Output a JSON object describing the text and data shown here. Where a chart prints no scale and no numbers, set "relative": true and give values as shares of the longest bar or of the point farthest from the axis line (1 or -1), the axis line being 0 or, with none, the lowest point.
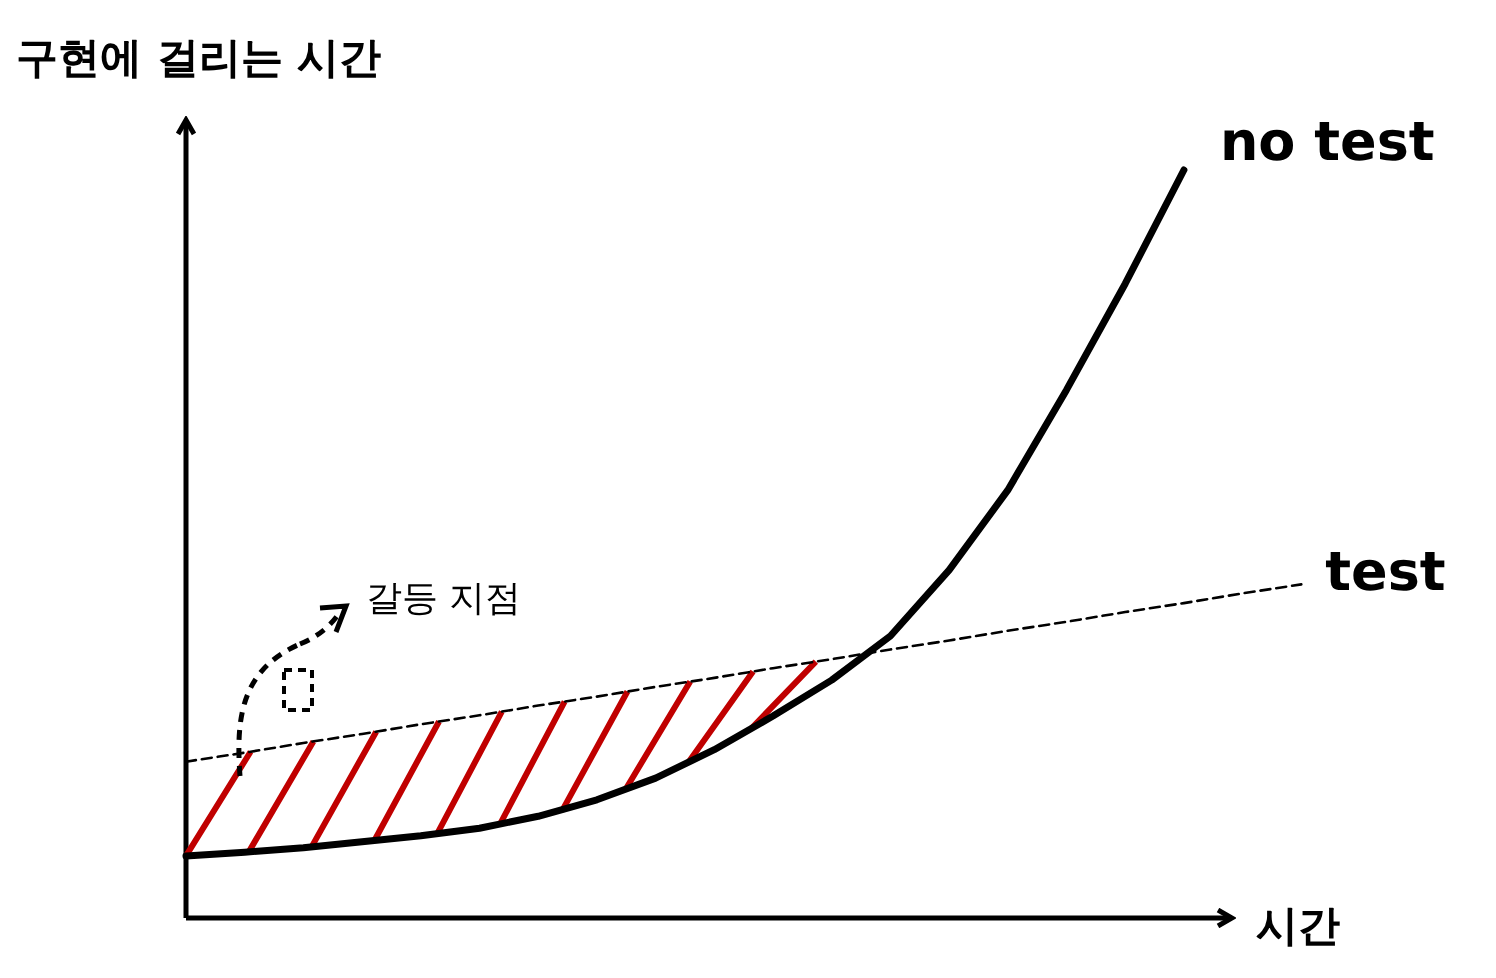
{
  "chart_data": {
    "type": "line",
    "relative": true,
    "xlabel": "시간",
    "ylabel": "구현에 걸리는 시간",
    "categories": [
      null,
      null,
      null,
      null,
      null,
      null,
      null,
      null,
      null,
      null,
      null,
      null,
      null,
      null,
      null,
      null,
      null,
      null,
      null,
      null
    ],
    "series": [
      {
        "name": "no test",
        "color": "#000000",
        "line_style": "solid",
        "values": [
          0.083,
          0.088,
          0.094,
          0.102,
          0.11,
          0.12,
          0.136,
          0.158,
          0.187,
          0.225,
          0.27,
          0.318,
          0.377,
          0.465,
          0.572,
          0.706,
          0.848,
          1.0,
          null,
          null
        ]
      },
      {
        "name": "test",
        "color": "#000000",
        "line_style": "dashed",
        "values": [
          0.209,
          0.221,
          0.234,
          0.246,
          0.259,
          0.271,
          0.284,
          0.296,
          0.309,
          0.321,
          0.334,
          0.346,
          0.359,
          0.371,
          0.384,
          0.396,
          0.409,
          0.421,
          0.434,
          0.446
        ]
      }
    ],
    "annotations": [
      "갈등 지점"
    ],
    "grid": false,
    "legend": false,
    "marker": "none"
  }
}
